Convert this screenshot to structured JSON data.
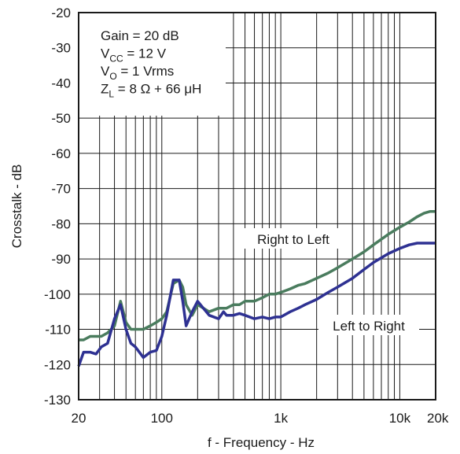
{
  "chart_data": {
    "type": "line",
    "xlabel": "f - Frequency - Hz",
    "ylabel": "Crosstalk - dB",
    "x_scale": "log",
    "xlim": [
      20,
      20000
    ],
    "ylim": [
      -130,
      -20
    ],
    "grid": true,
    "x_tick_labels": [
      {
        "value": 20,
        "label": "20"
      },
      {
        "value": 100,
        "label": "100"
      },
      {
        "value": 1000,
        "label": "1k"
      },
      {
        "value": 10000,
        "label": "10k"
      },
      {
        "value": 20000,
        "label": "20k"
      }
    ],
    "y_tick_labels": [
      "-20",
      "-30",
      "-40",
      "-50",
      "-60",
      "-70",
      "-80",
      "-90",
      "-100",
      "-110",
      "-120",
      "-130"
    ],
    "conditions": [
      {
        "main": "Gain = 20 dB"
      },
      {
        "main": "V",
        "sub": "CC",
        "rest": " = 12 V"
      },
      {
        "main": "V",
        "sub": "O",
        "rest": " = 1 Vrms"
      },
      {
        "main": "Z",
        "sub": "L",
        "rest": " = 8 Ω + 66 μH"
      }
    ],
    "series": [
      {
        "name": "Right to Left",
        "color": "#4a7c5e",
        "x": [
          20,
          22,
          25,
          28,
          31,
          35,
          40,
          45,
          50,
          55,
          60,
          70,
          80,
          90,
          100,
          110,
          125,
          140,
          150,
          160,
          180,
          200,
          250,
          300,
          330,
          350,
          400,
          450,
          500,
          600,
          700,
          800,
          900,
          1000,
          1200,
          1400,
          1600,
          2000,
          2500,
          3000,
          4000,
          5000,
          6000,
          8000,
          10000,
          12000,
          14000,
          16000,
          18000,
          20000
        ],
        "y": [
          -113,
          -113,
          -112,
          -112,
          -112,
          -111,
          -109,
          -102,
          -108,
          -110,
          -110,
          -110,
          -109,
          -108,
          -107,
          -105,
          -97,
          -96,
          -98,
          -103,
          -106,
          -103,
          -105,
          -104,
          -104,
          -104,
          -103,
          -103,
          -102,
          -102,
          -101,
          -100,
          -100,
          -99.5,
          -98.5,
          -97.5,
          -97,
          -95.5,
          -94,
          -92.5,
          -90,
          -88,
          -86,
          -83,
          -81,
          -79.5,
          -78,
          -77,
          -76.5,
          -76.5
        ]
      },
      {
        "name": "Left to Right",
        "color": "#2e3192",
        "x": [
          20,
          22,
          25,
          28,
          31,
          35,
          40,
          45,
          50,
          55,
          60,
          70,
          80,
          90,
          100,
          110,
          125,
          140,
          150,
          160,
          180,
          200,
          250,
          300,
          330,
          350,
          400,
          450,
          500,
          600,
          700,
          800,
          900,
          1000,
          1200,
          1400,
          1600,
          2000,
          2500,
          3000,
          4000,
          5000,
          6000,
          8000,
          10000,
          12000,
          14000,
          16000,
          18000,
          20000
        ],
        "y": [
          -120.5,
          -116.5,
          -116.5,
          -117,
          -115,
          -114,
          -107,
          -103,
          -110,
          -114,
          -115,
          -118,
          -116.5,
          -116,
          -112,
          -106,
          -96,
          -96,
          -102,
          -109,
          -105,
          -102,
          -106,
          -107,
          -105,
          -106,
          -106,
          -105.5,
          -106,
          -107,
          -106.5,
          -107,
          -106.5,
          -106.5,
          -105,
          -104,
          -103,
          -101.5,
          -99.5,
          -98,
          -95.5,
          -93,
          -91,
          -88.5,
          -87,
          -86,
          -85.5,
          -85.5,
          -85.5,
          -85.5
        ]
      }
    ],
    "annotations": [
      {
        "text": "Right to Left",
        "series": "Right to Left"
      },
      {
        "text": "Left to Right",
        "series": "Left to Right"
      }
    ]
  }
}
